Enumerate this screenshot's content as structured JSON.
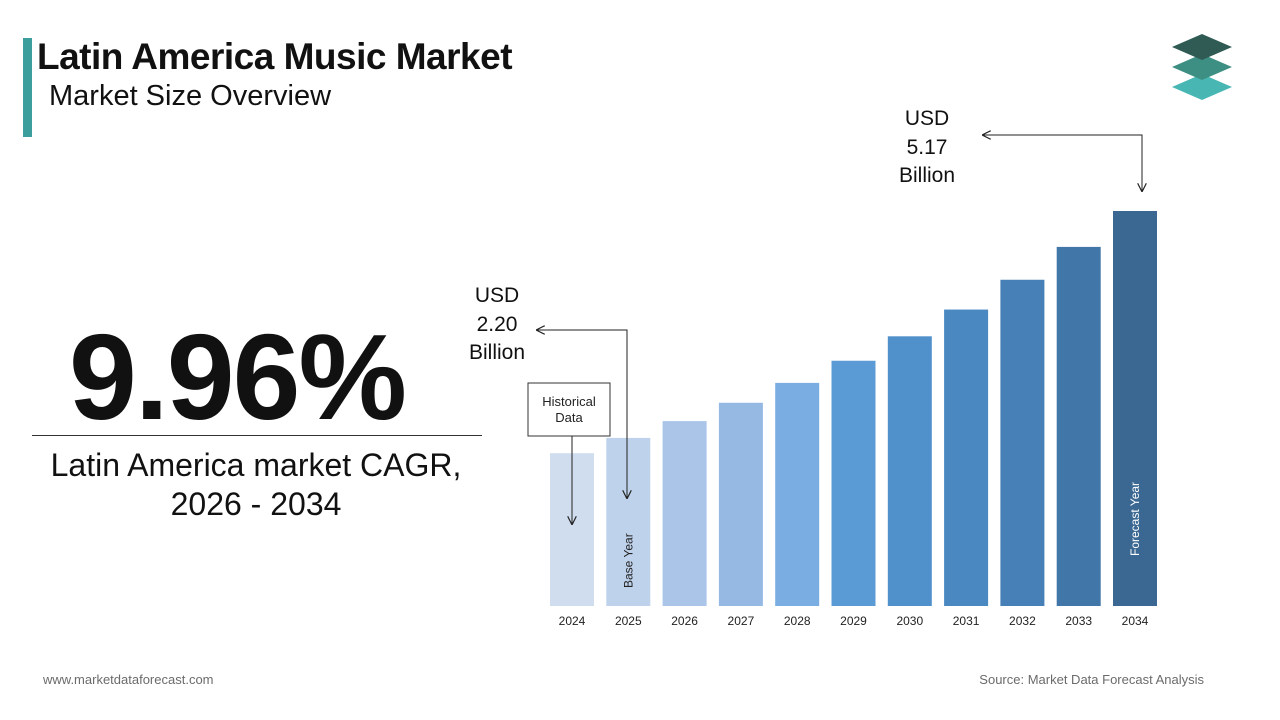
{
  "header": {
    "title": "Latin America Music Market",
    "subtitle": "Market Size Overview"
  },
  "cagr": {
    "value": "9.96%",
    "label_line1": "Latin America market CAGR,",
    "label_line2": "2026 - 2034"
  },
  "footer": {
    "website": "www.marketdataforecast.com",
    "source": "Source: Market Data Forecast Analysis"
  },
  "chart_data": {
    "type": "bar",
    "categories": [
      "2024",
      "2025",
      "2026",
      "2027",
      "2028",
      "2029",
      "2030",
      "2031",
      "2032",
      "2033",
      "2034"
    ],
    "values": [
      2.0,
      2.2,
      2.42,
      2.66,
      2.92,
      3.21,
      3.53,
      3.88,
      4.27,
      4.7,
      5.17
    ],
    "ylim": [
      0,
      5.17
    ],
    "grid": false,
    "bar_labels": {
      "2025": "Base Year",
      "2034": "Forecast Year"
    },
    "annotations": {
      "start": {
        "line1": "USD",
        "line2": "2.20",
        "line3": "Billion"
      },
      "end": {
        "line1": "USD",
        "line2": "5.17",
        "line3": "Billion"
      },
      "historical": {
        "line1": "Historical",
        "line2": "Data"
      }
    },
    "colors": [
      "#d0ddef",
      "#bed2eb",
      "#aac5e8",
      "#95b9e3",
      "#7aaee2",
      "#5b9bd5",
      "#5091cc",
      "#4a88c2",
      "#4680b6",
      "#4176a8",
      "#3b6893"
    ]
  }
}
